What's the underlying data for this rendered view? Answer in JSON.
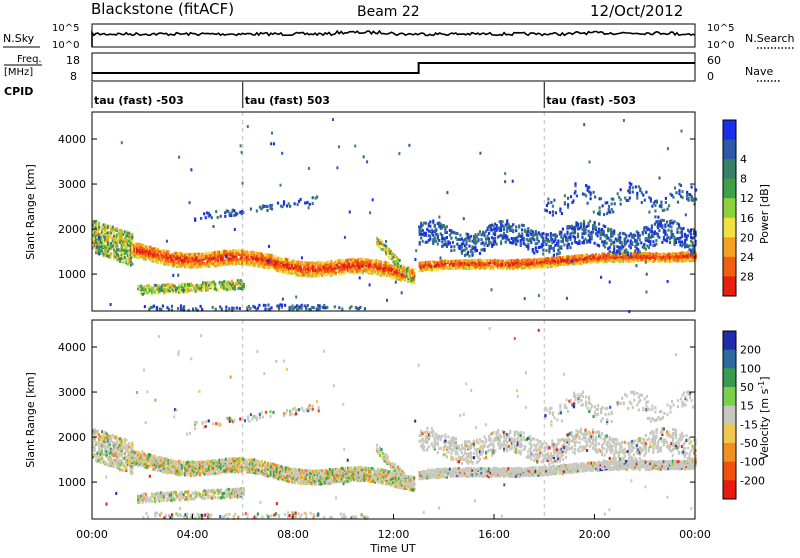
{
  "header": {
    "title": "Blackstone (fitACF)",
    "beam": "Beam 22",
    "date": "12/Oct/2012"
  },
  "nsky_panel": {
    "left_label": "N.Sky",
    "right_label": "N.Search",
    "tick_top": "10^5",
    "tick_bottom": "10^0",
    "right_tick_top": "10^5",
    "right_tick_bottom": "10^0"
  },
  "freq_panel": {
    "left_label_1": "Freq.",
    "left_label_2": "[MHz]",
    "right_label": "Nave",
    "left_tick_top": "18",
    "left_tick_bottom": "8",
    "right_tick_top": "60",
    "right_tick_bottom": "0"
  },
  "cpid_panel": {
    "label": "CPID",
    "segments": [
      {
        "label": "tau (fast) -503",
        "start_hour": 0
      },
      {
        "label": "tau (fast) 503",
        "start_hour": 6
      },
      {
        "label": "tau (fast) -503",
        "start_hour": 18
      }
    ]
  },
  "chart_data": [
    {
      "type": "heatmap",
      "name": "power",
      "ylabel": "Slant Range [km]",
      "yticks": [
        "1000",
        "2000",
        "3000",
        "4000"
      ],
      "ylim": [
        180,
        4600
      ],
      "colorbar_label": "Power [dB]",
      "colorbar_ticks": [
        "4",
        "8",
        "12",
        "16",
        "20",
        "24",
        "28"
      ],
      "colorbar_colors": [
        "#1a2ee8",
        "#2a5aa8",
        "#3a7f6a",
        "#3fa04a",
        "#8cd03a",
        "#f0e040",
        "#f5a020",
        "#f06010",
        "#e82010"
      ]
    },
    {
      "type": "heatmap",
      "name": "velocity",
      "ylabel": "Slant Range [km]",
      "yticks": [
        "1000",
        "2000",
        "3000",
        "4000"
      ],
      "ylim": [
        180,
        4600
      ],
      "colorbar_label": "Velocity [m s",
      "colorbar_label_sup": "-1",
      "colorbar_label_end": "]",
      "colorbar_ticks": [
        "200",
        "100",
        "50",
        "15",
        "-15",
        "-50",
        "-100",
        "-200"
      ],
      "colorbar_colors": [
        "#1f2ea8",
        "#2e6aa0",
        "#3a9a50",
        "#7ad04a",
        "#c8c8c0",
        "#f0c850",
        "#f09020",
        "#f05010",
        "#e81a10"
      ]
    }
  ],
  "xaxis": {
    "xlabel": "Time UT",
    "ticks": [
      "00:00",
      "04:00",
      "08:00",
      "12:00",
      "16:00",
      "20:00",
      "00:00"
    ]
  }
}
